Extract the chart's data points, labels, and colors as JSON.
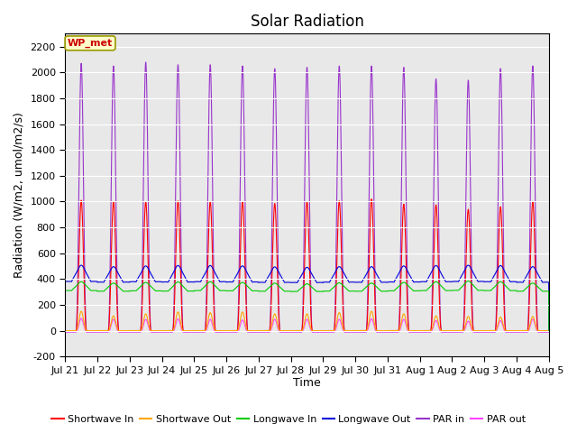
{
  "title": "Solar Radiation",
  "ylabel": "Radiation (W/m2, umol/m2/s)",
  "xlabel": "Time",
  "ylim": [
    -200,
    2300
  ],
  "yticks": [
    -200,
    0,
    200,
    400,
    600,
    800,
    1000,
    1200,
    1400,
    1600,
    1800,
    2000,
    2200
  ],
  "background_color": "#e8e8e8",
  "annotation_text": "WP_met",
  "annotation_box_color": "#ffffcc",
  "annotation_border_color": "#999900",
  "series": {
    "shortwave_in": {
      "color": "#ff0000",
      "label": "Shortwave In"
    },
    "shortwave_out": {
      "color": "#ffa500",
      "label": "Shortwave Out"
    },
    "longwave_in": {
      "color": "#00cc00",
      "label": "Longwave In"
    },
    "longwave_out": {
      "color": "#0000dd",
      "label": "Longwave Out"
    },
    "par_in": {
      "color": "#9933cc",
      "label": "PAR in"
    },
    "par_out": {
      "color": "#ff44ff",
      "label": "PAR out"
    }
  },
  "n_days": 15,
  "xtick_labels": [
    "Jul 21",
    "Jul 22",
    "Jul 23",
    "Jul 24",
    "Jul 25",
    "Jul 26",
    "Jul 27",
    "Jul 28",
    "Jul 29",
    "Jul 30",
    "Jul 31",
    "Aug 1",
    "Aug 2",
    "Aug 3",
    "Aug 4",
    "Aug 5"
  ],
  "title_fontsize": 12,
  "label_fontsize": 9,
  "tick_fontsize": 8,
  "sw_in_peaks": [
    1010,
    1000,
    1000,
    1005,
    1000,
    1000,
    985,
    1000,
    1005,
    1020,
    980,
    975,
    940,
    960,
    1000
  ],
  "sw_out_peaks": [
    150,
    115,
    130,
    145,
    140,
    145,
    130,
    130,
    140,
    150,
    130,
    115,
    110,
    105,
    110
  ],
  "par_in_peaks": [
    2070,
    2050,
    2080,
    2060,
    2060,
    2050,
    2030,
    2040,
    2050,
    2050,
    2040,
    1950,
    1940,
    2030,
    2050
  ],
  "par_out_peaks": [
    95,
    88,
    88,
    92,
    88,
    83,
    88,
    88,
    88,
    92,
    88,
    78,
    73,
    78,
    88
  ],
  "lw_in_night": [
    310,
    305,
    308,
    306,
    310,
    308,
    305,
    303,
    306,
    305,
    308,
    310,
    312,
    310,
    305
  ],
  "lw_in_day": [
    370,
    360,
    365,
    368,
    370,
    365,
    360,
    355,
    362,
    360,
    365,
    370,
    375,
    370,
    360
  ],
  "lw_out_night": [
    380,
    375,
    378,
    376,
    378,
    376,
    373,
    372,
    375,
    374,
    376,
    378,
    380,
    378,
    374
  ],
  "lw_out_day": [
    490,
    480,
    485,
    488,
    488,
    485,
    478,
    475,
    480,
    480,
    485,
    488,
    490,
    488,
    480
  ]
}
